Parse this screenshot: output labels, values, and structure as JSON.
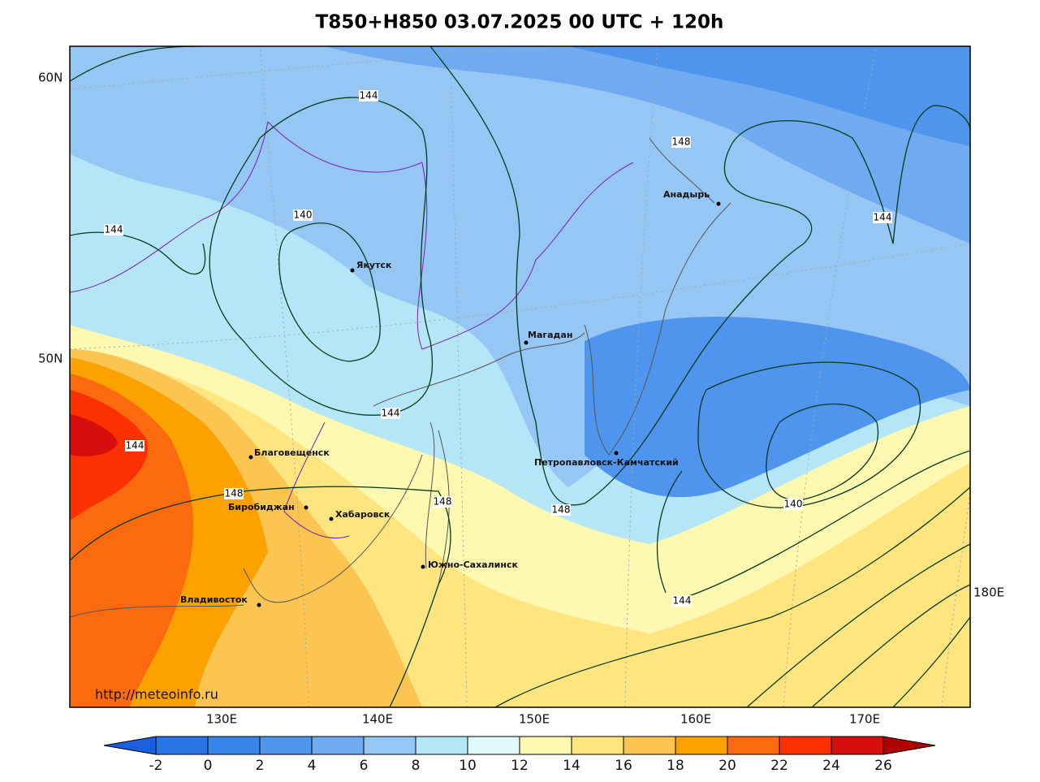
{
  "title": "T850+H850 03.07.2025 00 UTC + 120h",
  "url": "http://meteoinfo.ru",
  "lat_labels": [
    "60N",
    "50N"
  ],
  "lon_labels": [
    "130E",
    "140E",
    "150E",
    "160E",
    "170E",
    "180E"
  ],
  "cities": [
    "Якутск",
    "Магадан",
    "Анадырь",
    "Благовещенск",
    "Биробиджан",
    "Хабаровск",
    "Южно-Сахалинск",
    "Владивосток",
    "Петропавловск-Камчатский"
  ],
  "contour_labels": [
    144,
    148,
    144,
    144,
    140,
    144,
    144,
    148,
    148,
    148,
    140,
    144
  ],
  "colorbar": {
    "ticks": [
      -2,
      0,
      2,
      4,
      6,
      8,
      10,
      12,
      14,
      16,
      18,
      20,
      22,
      24,
      26
    ],
    "colors": [
      "#1a5fe0",
      "#2a74e6",
      "#3a85ea",
      "#4f95ee",
      "#70aaf0",
      "#96c6f4",
      "#b4e6f8",
      "#e0fafc",
      "#fff8b0",
      "#ffe580",
      "#fcc450",
      "#fca200",
      "#fc6a10",
      "#fc3000",
      "#d80e0e",
      "#b00000"
    ]
  }
}
